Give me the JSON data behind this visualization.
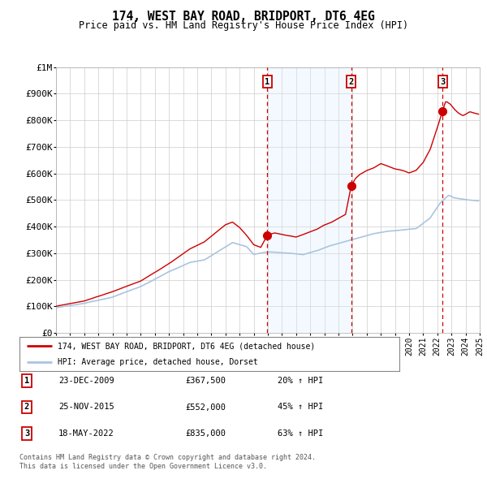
{
  "title": "174, WEST BAY ROAD, BRIDPORT, DT6 4EG",
  "subtitle": "Price paid vs. HM Land Registry's House Price Index (HPI)",
  "hpi_label": "HPI: Average price, detached house, Dorset",
  "property_label": "174, WEST BAY ROAD, BRIDPORT, DT6 4EG (detached house)",
  "footer1": "Contains HM Land Registry data © Crown copyright and database right 2024.",
  "footer2": "This data is licensed under the Open Government Licence v3.0.",
  "sale_year_floats": [
    2009.97,
    2015.9,
    2022.37
  ],
  "sale_prices": [
    367500,
    552000,
    835000
  ],
  "sale_labels": [
    "1",
    "2",
    "3"
  ],
  "sale_info": [
    [
      "23-DEC-2009",
      "£367,500",
      "20% ↑ HPI"
    ],
    [
      "25-NOV-2015",
      "£552,000",
      "45% ↑ HPI"
    ],
    [
      "18-MAY-2022",
      "£835,000",
      "63% ↑ HPI"
    ]
  ],
  "year_start": 1995,
  "year_end": 2025,
  "ymax": 1000000,
  "background_color": "#ffffff",
  "grid_color": "#cccccc",
  "hpi_line_color": "#aac4e0",
  "property_line_color": "#cc0000",
  "sale_dot_color": "#cc0000",
  "vspan_color": "#ddeeff",
  "dashed_line_color": "#cc0000",
  "label_box_color": "#cc0000",
  "yticks": [
    0,
    100000,
    200000,
    300000,
    400000,
    500000,
    600000,
    700000,
    800000,
    900000,
    1000000
  ],
  "ytick_labels": [
    "£0",
    "£100K",
    "£200K",
    "£300K",
    "£400K",
    "£500K",
    "£600K",
    "£700K",
    "£800K",
    "£900K",
    "£1M"
  ]
}
